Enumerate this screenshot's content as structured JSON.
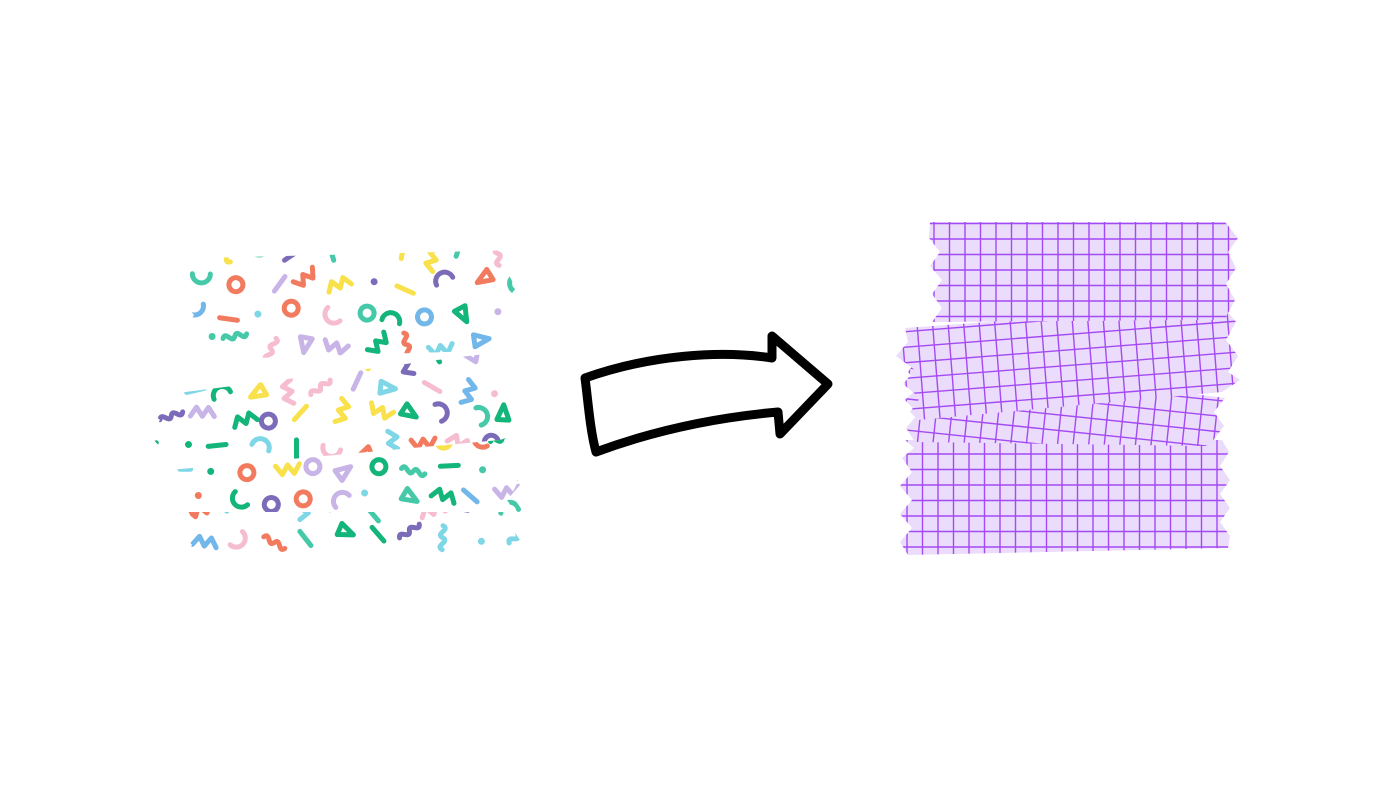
{
  "canvas": {
    "background": "#ffffff"
  },
  "confetti_tapes": {
    "name": "confetti-washi-tape-stack",
    "palette": [
      "#f9e14b",
      "#f27a5e",
      "#13b57a",
      "#7fd6e6",
      "#c8b4e6",
      "#7c6bb8",
      "#f6bcd0",
      "#45c9a8",
      "#72b7ea"
    ],
    "background": "#ffffff",
    "shapes": [
      "squiggle",
      "zigzag",
      "ring",
      "triangle",
      "arc",
      "dash",
      "dot"
    ]
  },
  "arrow": {
    "icon": "hand-drawn-right-arrow-icon",
    "stroke": "#000000",
    "fill": "#ffffff"
  },
  "grid_tapes": {
    "name": "grid-washi-tape-stack",
    "fill": "#eadcfa",
    "line_color": "#a44af4"
  }
}
